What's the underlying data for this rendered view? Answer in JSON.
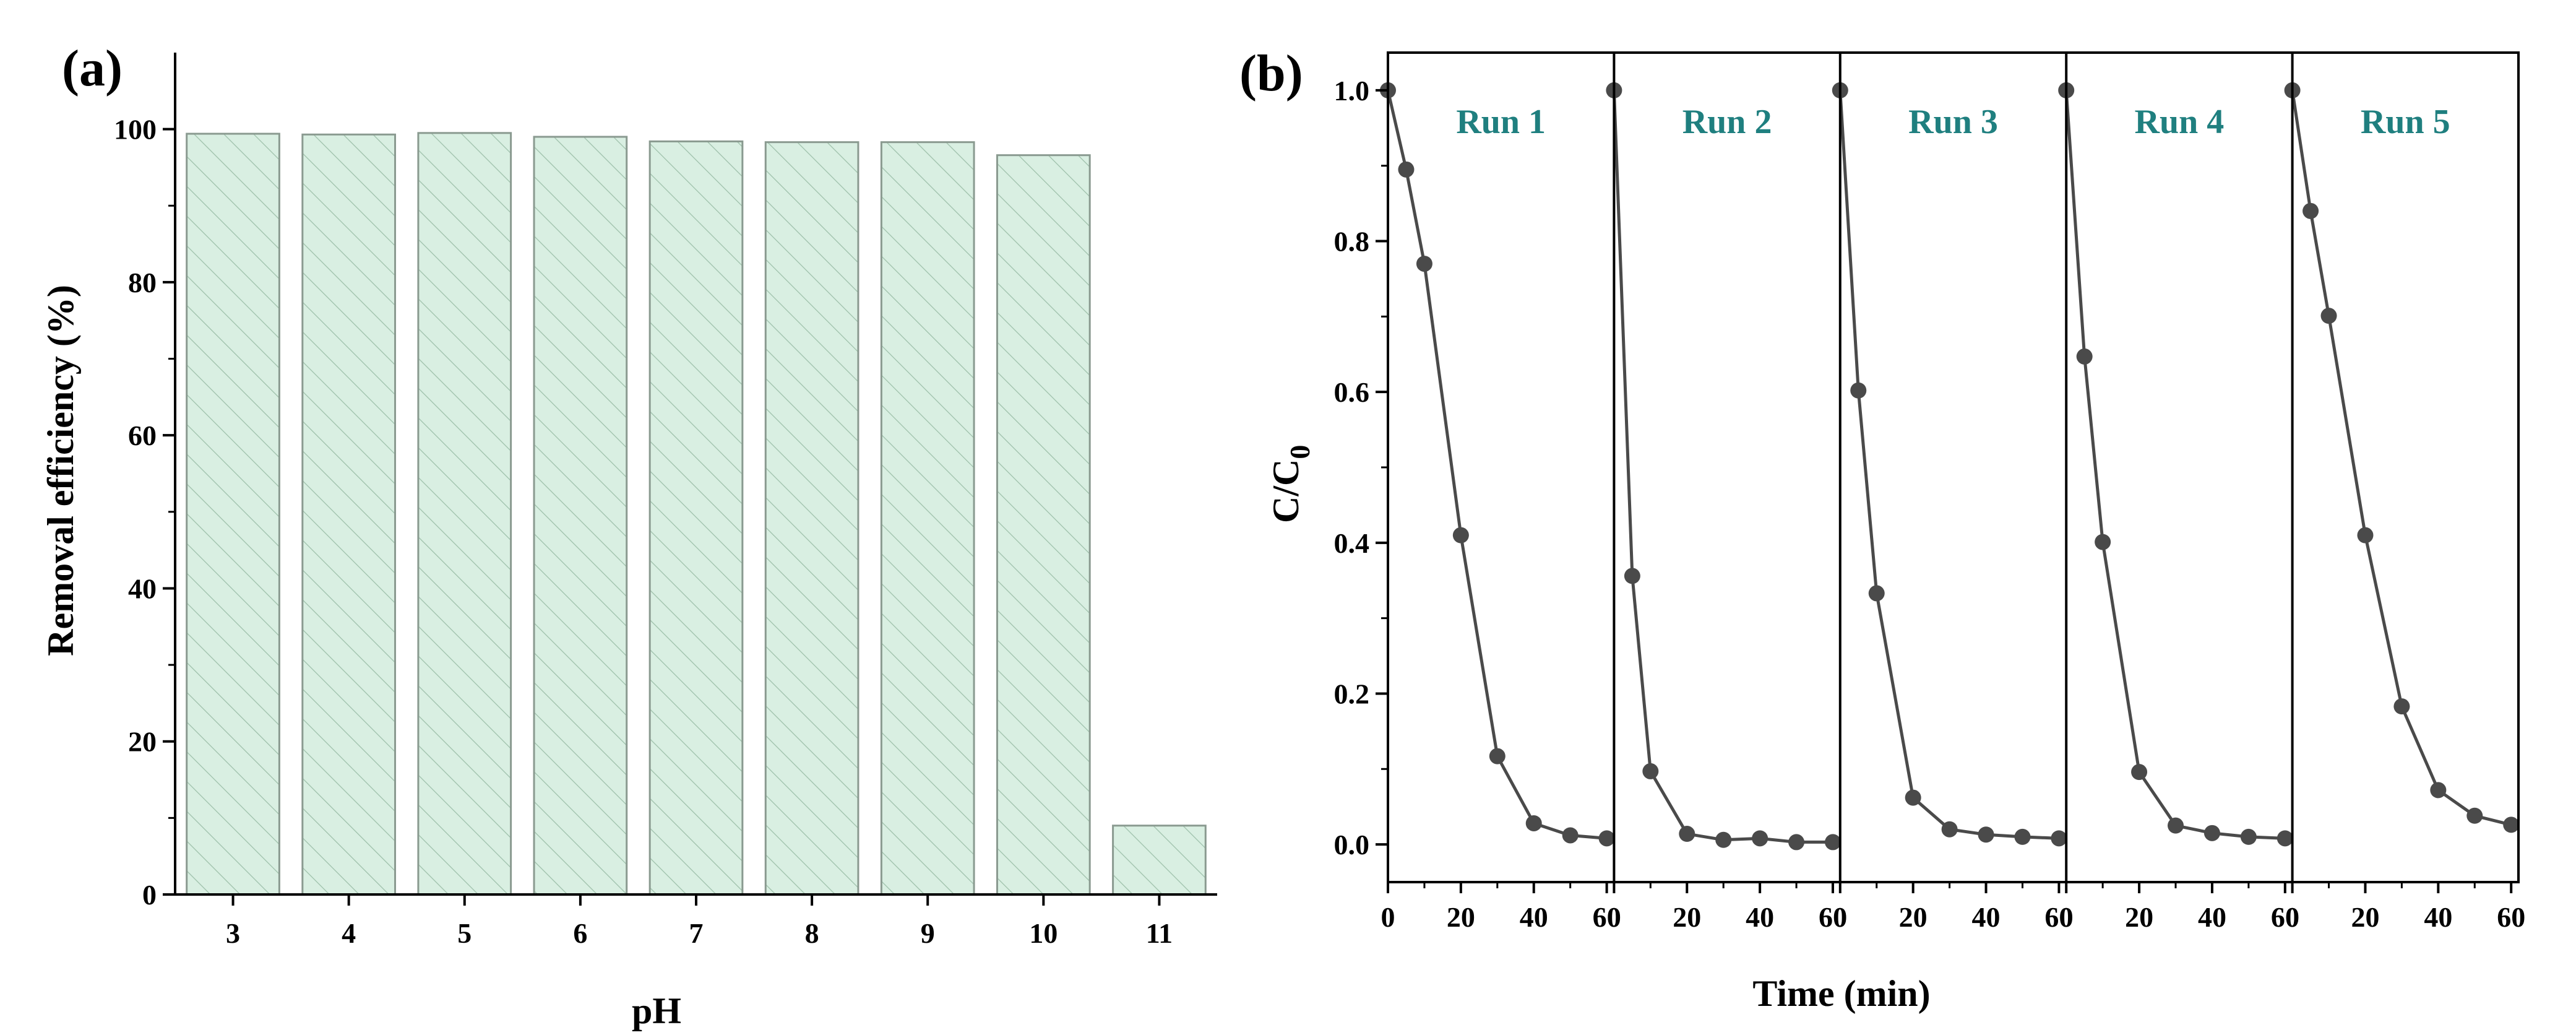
{
  "chart_data": [
    {
      "type": "bar",
      "panel_label": "(a)",
      "title": "",
      "xlabel": "pH",
      "ylabel": "Removal efficiency (%)",
      "categories": [
        "3",
        "4",
        "5",
        "6",
        "7",
        "8",
        "9",
        "10",
        "11"
      ],
      "values": [
        99.4,
        99.3,
        99.5,
        99.0,
        98.4,
        98.3,
        98.3,
        96.6,
        9.0
      ],
      "ylim": [
        0,
        110
      ],
      "yticks": [
        0,
        20,
        40,
        60,
        80,
        100
      ],
      "ytick_labels": [
        "0",
        "20",
        "40",
        "60",
        "80",
        "100"
      ],
      "grid": false,
      "bar_fill": "#d9efe2",
      "bar_stroke": "#8a9a90",
      "hatch_color": "#9cbfa9"
    },
    {
      "type": "line",
      "panel_label": "(b)",
      "title": "",
      "xlabel": "Time (min)",
      "ylabel_main": "C/C",
      "ylabel_sub": "0",
      "ylim": [
        -0.05,
        1.05
      ],
      "yticks": [
        0.0,
        0.2,
        0.4,
        0.6,
        0.8,
        1.0
      ],
      "ytick_labels": [
        "0.0",
        "0.2",
        "0.4",
        "0.6",
        "0.8",
        "1.0"
      ],
      "xticks": [
        0,
        20,
        40,
        60
      ],
      "xtick_labels": [
        "0",
        "20",
        "40",
        "60"
      ],
      "run_xlim": [
        0,
        62
      ],
      "grid": false,
      "marker_color": "#4a4a4a",
      "run_label_color": "#1f7f7f",
      "series": [
        {
          "name": "Run 1",
          "x": [
            0,
            5,
            10,
            20,
            30,
            40,
            50,
            60
          ],
          "y": [
            1.0,
            0.895,
            0.77,
            0.41,
            0.117,
            0.028,
            0.012,
            0.008
          ]
        },
        {
          "name": "Run 2",
          "x": [
            0,
            5,
            10,
            20,
            30,
            40,
            50,
            60
          ],
          "y": [
            1.0,
            0.356,
            0.097,
            0.014,
            0.006,
            0.008,
            0.003,
            0.003
          ]
        },
        {
          "name": "Run 3",
          "x": [
            0,
            5,
            10,
            20,
            30,
            40,
            50,
            60
          ],
          "y": [
            1.0,
            0.602,
            0.333,
            0.062,
            0.02,
            0.013,
            0.01,
            0.008
          ]
        },
        {
          "name": "Run 4",
          "x": [
            0,
            5,
            10,
            20,
            30,
            40,
            50,
            60
          ],
          "y": [
            1.0,
            0.647,
            0.401,
            0.096,
            0.025,
            0.015,
            0.01,
            0.008
          ]
        },
        {
          "name": "Run 5",
          "x": [
            0,
            5,
            10,
            20,
            30,
            40,
            50,
            60
          ],
          "y": [
            1.0,
            0.84,
            0.701,
            0.41,
            0.183,
            0.072,
            0.038,
            0.026
          ]
        }
      ]
    }
  ]
}
